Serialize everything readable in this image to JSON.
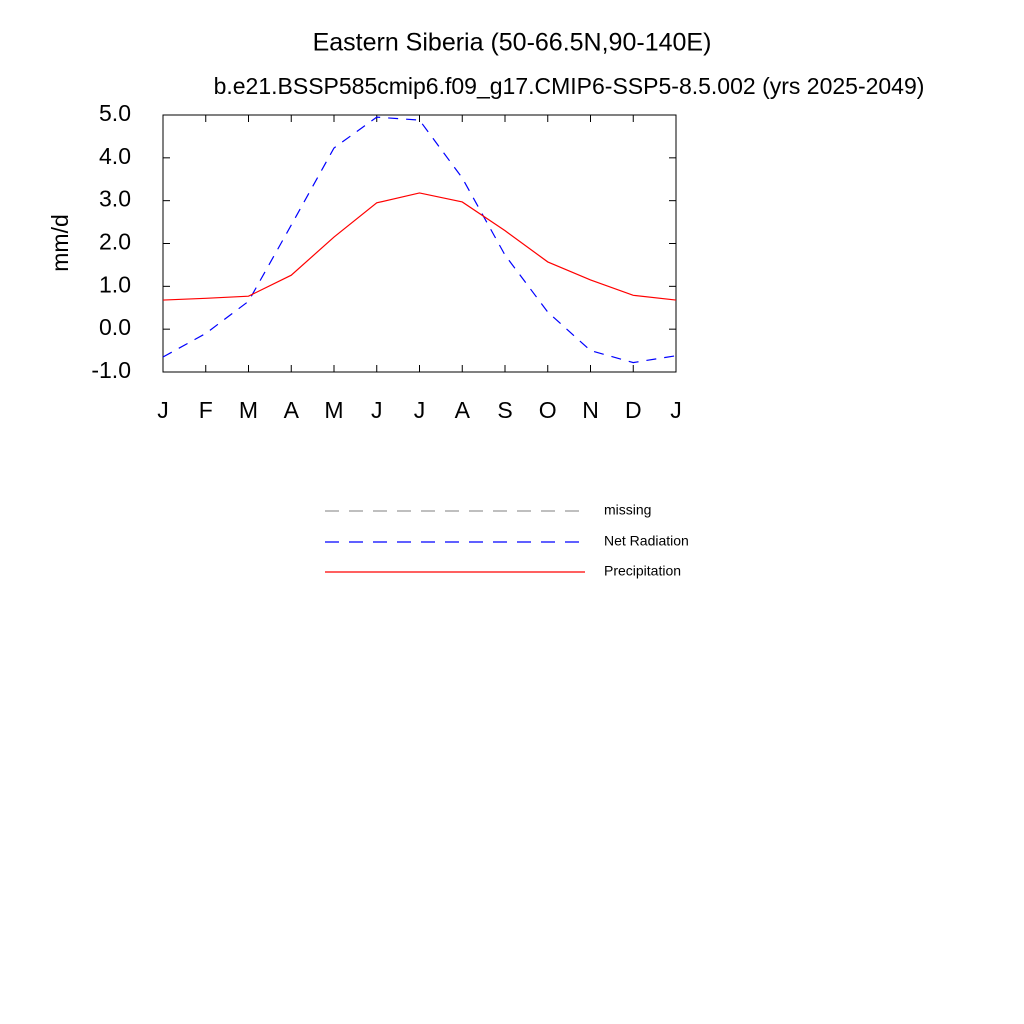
{
  "chart_data": {
    "type": "line",
    "title": "Eastern Siberia (50-66.5N,90-140E)",
    "subtitle": "b.e21.BSSP585cmip6.f09_g17.CMIP6-SSP5-8.5.002 (yrs 2025-2049)",
    "y_label": "mm/d",
    "categories": [
      "J",
      "F",
      "M",
      "A",
      "M",
      "J",
      "J",
      "A",
      "S",
      "O",
      "N",
      "D",
      "J"
    ],
    "ylim": [
      -1,
      5
    ],
    "yticks": [
      {
        "value": -1,
        "label": "-1.0"
      },
      {
        "value": 0,
        "label": "0.0"
      },
      {
        "value": 1,
        "label": "1.0"
      },
      {
        "value": 2,
        "label": "2.0"
      },
      {
        "value": 3,
        "label": "3.0"
      },
      {
        "value": 4,
        "label": "4.0"
      },
      {
        "value": 5,
        "label": "5.0"
      }
    ],
    "grid": false,
    "series": [
      {
        "name": "missing",
        "color": "#999999",
        "dashed": true,
        "values": [
          null,
          null,
          null,
          null,
          null,
          null,
          null,
          null,
          null,
          null,
          null,
          null,
          null
        ]
      },
      {
        "name": "Net Radiation",
        "color": "#0000ff",
        "dashed": true,
        "values": [
          -0.65,
          -0.1,
          0.65,
          2.43,
          4.23,
          4.95,
          4.88,
          3.53,
          1.73,
          0.4,
          -0.5,
          -0.78,
          -0.62
        ]
      },
      {
        "name": "Precipitation",
        "color": "#ff0000",
        "dashed": false,
        "values": [
          0.68,
          0.72,
          0.77,
          1.26,
          2.15,
          2.95,
          3.18,
          2.97,
          2.3,
          1.57,
          1.15,
          0.79,
          0.68
        ]
      }
    ]
  }
}
